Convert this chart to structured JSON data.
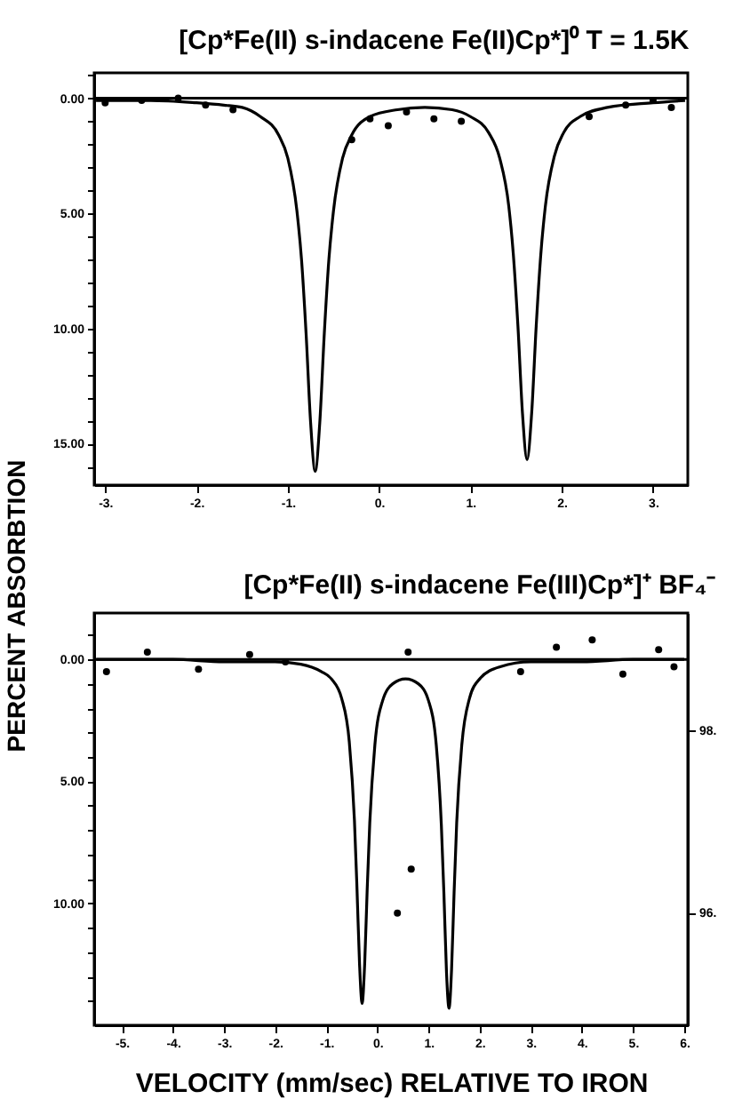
{
  "chart_data": [
    {
      "type": "line",
      "title": "[Cp*Fe(II) s-indacene Fe(II)Cp*]⁰   T = 1.5K",
      "ylabel": "PERCENT ABSORBTION",
      "series": [
        {
          "color": "#000000",
          "x": [
            -3.1,
            -2.5,
            -2.0,
            -1.7,
            -1.5,
            -1.3,
            -1.1,
            -1.0,
            -0.9,
            -0.85,
            -0.8,
            -0.75,
            -0.7,
            -0.65,
            -0.6,
            -0.55,
            -0.5,
            -0.4,
            -0.3,
            -0.1,
            0.2,
            0.5,
            0.8,
            1.0,
            1.2,
            1.32,
            1.42,
            1.47,
            1.52,
            1.57,
            1.62,
            1.67,
            1.72,
            1.77,
            1.82,
            1.92,
            2.02,
            2.2,
            2.5,
            3.0,
            3.35
          ],
          "values": [
            0.1,
            0.1,
            0.2,
            0.3,
            0.4,
            0.8,
            1.6,
            2.6,
            4.9,
            7.0,
            10.2,
            14.1,
            16.2,
            14.1,
            10.2,
            7.0,
            4.9,
            2.6,
            1.6,
            0.8,
            0.5,
            0.4,
            0.5,
            0.8,
            1.5,
            2.6,
            4.7,
            6.8,
            9.9,
            13.7,
            15.7,
            13.7,
            9.9,
            6.8,
            4.7,
            2.5,
            1.5,
            0.8,
            0.4,
            0.2,
            0.1
          ]
        },
        {
          "type": "scatter",
          "marker": "circle",
          "color": "#000000",
          "x": [
            -3.0,
            -2.6,
            -2.2,
            -1.9,
            -1.6,
            -0.3,
            -0.1,
            0.1,
            0.3,
            0.6,
            0.9,
            2.3,
            2.7,
            3.0,
            3.2
          ],
          "values": [
            0.2,
            0.1,
            0.0,
            0.3,
            0.5,
            1.8,
            0.9,
            1.2,
            0.6,
            0.9,
            1.0,
            0.8,
            0.3,
            0.1,
            0.4
          ]
        }
      ],
      "xlim": [
        -3.12,
        3.38
      ],
      "ylim": [
        16.8,
        -1.1
      ],
      "xticks": [
        {
          "value": -3,
          "label": "-3."
        },
        {
          "value": -2,
          "label": "-2."
        },
        {
          "value": -1,
          "label": "-1."
        },
        {
          "value": 0,
          "label": "0."
        },
        {
          "value": 1,
          "label": "1."
        },
        {
          "value": 2,
          "label": "2."
        },
        {
          "value": 3,
          "label": "3."
        }
      ],
      "yticks": [
        {
          "value": -1,
          "label": null
        },
        {
          "value": 0,
          "label": "0.00"
        },
        {
          "value": 1,
          "label": null
        },
        {
          "value": 2,
          "label": null
        },
        {
          "value": 3,
          "label": null
        },
        {
          "value": 4,
          "label": null
        },
        {
          "value": 5,
          "label": "5.00"
        },
        {
          "value": 6,
          "label": null
        },
        {
          "value": 7,
          "label": null
        },
        {
          "value": 8,
          "label": null
        },
        {
          "value": 9,
          "label": null
        },
        {
          "value": 10,
          "label": "10.00"
        },
        {
          "value": 11,
          "label": null
        },
        {
          "value": 12,
          "label": null
        },
        {
          "value": 13,
          "label": null
        },
        {
          "value": 14,
          "label": null
        },
        {
          "value": 15,
          "label": "15.00"
        },
        {
          "value": 16,
          "label": null
        }
      ],
      "ref_lines": [
        {
          "axis": "y",
          "value": 0
        }
      ]
    },
    {
      "type": "line",
      "title": "[Cp*Fe(II) s-indacene Fe(III)Cp*]⁺ BF₄⁻",
      "xlabel": "VELOCITY (mm/sec) RELATIVE TO IRON",
      "series": [
        {
          "color": "#000000",
          "x": [
            -5.5,
            -4,
            -3,
            -2,
            -1.5,
            -1.1,
            -0.9,
            -0.7,
            -0.55,
            -0.45,
            -0.4,
            -0.35,
            -0.3,
            -0.25,
            -0.2,
            -0.15,
            -0.05,
            0.1,
            0.3,
            0.55,
            0.8,
            1.0,
            1.15,
            1.25,
            1.3,
            1.35,
            1.4,
            1.45,
            1.5,
            1.55,
            1.65,
            1.8,
            2.0,
            2.4,
            3,
            4,
            5,
            6
          ],
          "values": [
            0.0,
            0.0,
            0.1,
            0.1,
            0.2,
            0.5,
            0.8,
            1.6,
            3.4,
            6.6,
            9.4,
            12.5,
            14.1,
            12.5,
            9.4,
            6.7,
            3.5,
            1.7,
            1.0,
            0.8,
            1.0,
            1.7,
            3.5,
            6.8,
            9.6,
            12.8,
            14.3,
            12.7,
            9.5,
            6.7,
            3.5,
            1.6,
            0.8,
            0.3,
            0.1,
            0.1,
            0.0,
            0.0
          ]
        },
        {
          "type": "scatter",
          "marker": "circle",
          "color": "#000000",
          "x": [
            -5.3,
            -4.5,
            -3.5,
            -2.5,
            -1.8,
            0.6,
            0.66,
            0.39,
            2.8,
            3.5,
            4.2,
            4.8,
            5.5,
            5.8
          ],
          "values": [
            0.5,
            -0.3,
            0.4,
            -0.2,
            0.1,
            -0.3,
            8.6,
            10.4,
            0.5,
            -0.5,
            -0.8,
            0.6,
            -0.4,
            0.3
          ]
        }
      ],
      "xlim": [
        -5.54,
        6.07
      ],
      "ylim": [
        15.0,
        -1.9
      ],
      "y2lim": [
        94.77,
        99.28
      ],
      "xticks": [
        {
          "value": -5,
          "label": "-5."
        },
        {
          "value": -4,
          "label": "-4."
        },
        {
          "value": -3,
          "label": "-3."
        },
        {
          "value": -2,
          "label": "-2."
        },
        {
          "value": -1,
          "label": "-1."
        },
        {
          "value": 0,
          "label": "0."
        },
        {
          "value": 1,
          "label": "1."
        },
        {
          "value": 2,
          "label": "2."
        },
        {
          "value": 3,
          "label": "3."
        },
        {
          "value": 4,
          "label": "4."
        },
        {
          "value": 5,
          "label": "5."
        },
        {
          "value": 6,
          "label": "6."
        }
      ],
      "yticks": [
        {
          "value": -1,
          "label": null
        },
        {
          "value": 0,
          "label": "0.00"
        },
        {
          "value": 1,
          "label": null
        },
        {
          "value": 2,
          "label": null
        },
        {
          "value": 3,
          "label": null
        },
        {
          "value": 4,
          "label": null
        },
        {
          "value": 5,
          "label": "5.00"
        },
        {
          "value": 6,
          "label": null
        },
        {
          "value": 7,
          "label": null
        },
        {
          "value": 8,
          "label": null
        },
        {
          "value": 9,
          "label": null
        },
        {
          "value": 10,
          "label": "10.00"
        },
        {
          "value": 11,
          "label": null
        },
        {
          "value": 12,
          "label": null
        },
        {
          "value": 13,
          "label": null
        },
        {
          "value": 14,
          "label": null
        }
      ],
      "y2ticks": [
        {
          "value": 98,
          "label": "98."
        },
        {
          "value": 96,
          "label": "96."
        }
      ],
      "ref_lines": [
        {
          "axis": "y",
          "value": 0
        }
      ]
    }
  ]
}
